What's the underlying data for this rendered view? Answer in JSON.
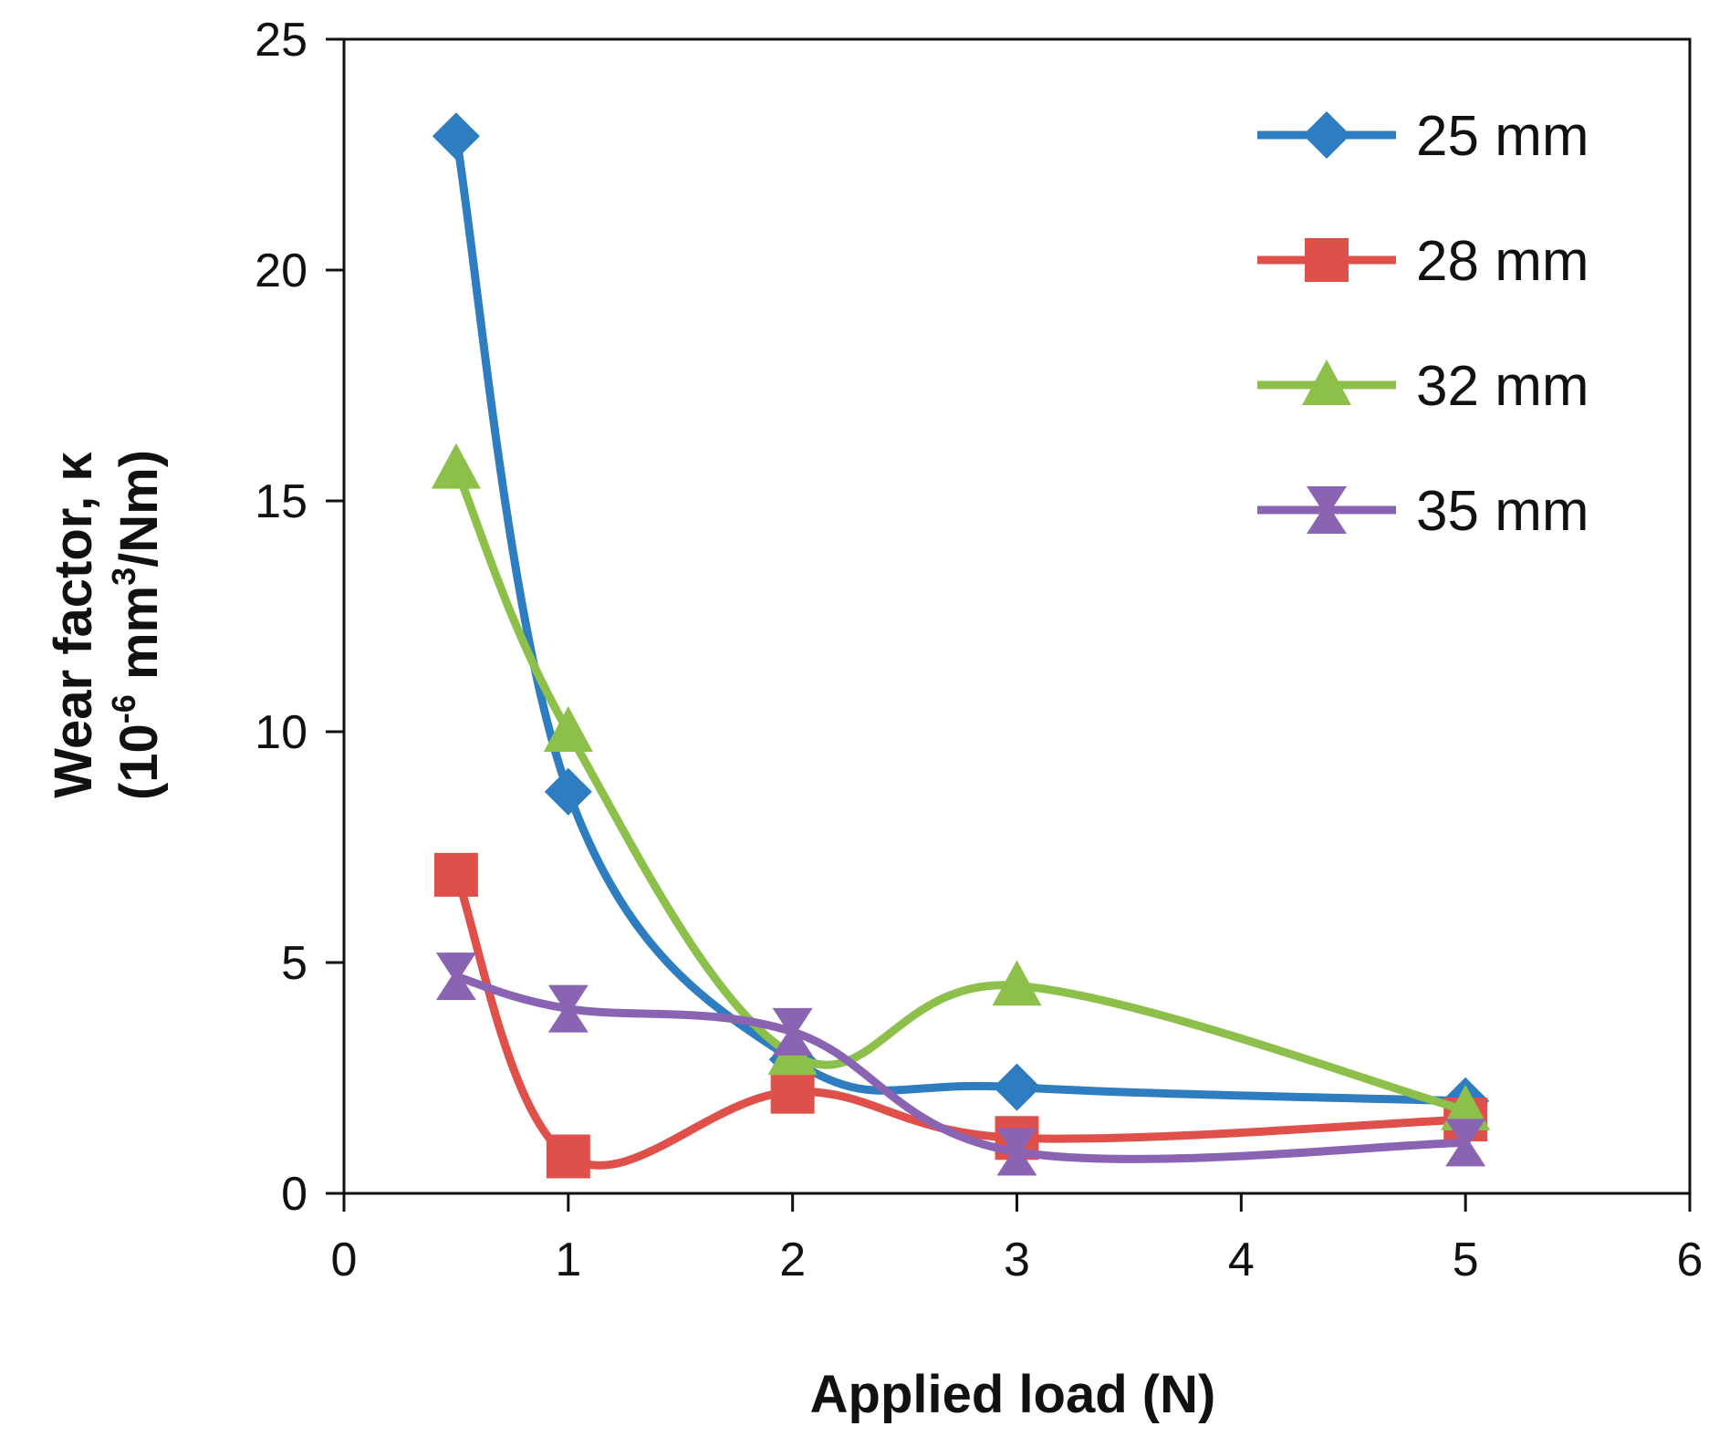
{
  "chart_data": {
    "type": "line",
    "title": "",
    "xlabel": "Applied load (N)",
    "ylabel_line1": "Wear factor, κ",
    "ylabel_line2_prefix": "(10",
    "ylabel_exp1": "-6",
    "ylabel_mid": " mm",
    "ylabel_exp2": "3",
    "ylabel_suffix": "/Nm)",
    "xlim": [
      0,
      6
    ],
    "ylim": [
      0,
      25
    ],
    "xticks": [
      0,
      1,
      2,
      3,
      4,
      5,
      6
    ],
    "yticks": [
      0,
      5,
      10,
      15,
      20,
      25
    ],
    "grid": false,
    "legend_position": "top-right",
    "series": [
      {
        "name": "25 mm",
        "color": "#2e7dc0",
        "marker": "diamond",
        "x": [
          0.5,
          1,
          2,
          3,
          5
        ],
        "y": [
          22.9,
          8.7,
          2.9,
          2.3,
          2.0
        ]
      },
      {
        "name": "28 mm",
        "color": "#e0504b",
        "marker": "square",
        "x": [
          0.5,
          1,
          2,
          3,
          5
        ],
        "y": [
          6.9,
          0.8,
          2.2,
          1.2,
          1.6
        ]
      },
      {
        "name": "32 mm",
        "color": "#8dc04b",
        "marker": "triangle",
        "x": [
          0.5,
          1,
          2,
          3,
          5
        ],
        "y": [
          15.7,
          10.0,
          3.0,
          4.5,
          1.8
        ]
      },
      {
        "name": "35 mm",
        "color": "#8a64b2",
        "marker": "star",
        "x": [
          0.5,
          1,
          2,
          3,
          5
        ],
        "y": [
          4.7,
          4.0,
          3.5,
          0.9,
          1.1
        ]
      }
    ]
  }
}
